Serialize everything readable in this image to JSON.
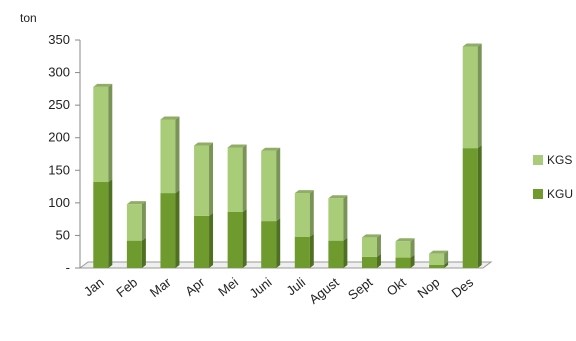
{
  "chart_data": {
    "type": "bar",
    "stacked": true,
    "unit_label": "ton",
    "categories": [
      "Jan",
      "Feb",
      "Mar",
      "Apr",
      "Mei",
      "Juni",
      "Juli",
      "Agust",
      "Sept",
      "Okt",
      "Nop",
      "Des"
    ],
    "series": [
      {
        "name": "KGU",
        "color": "#6e9a2e",
        "values": [
          132,
          42,
          115,
          80,
          86,
          72,
          48,
          42,
          17,
          16,
          5,
          184
        ]
      },
      {
        "name": "KGS",
        "color": "#a9cc79",
        "values": [
          146,
          56,
          113,
          108,
          99,
          108,
          67,
          65,
          30,
          25,
          17,
          156
        ]
      }
    ],
    "ylim": [
      0,
      350
    ],
    "yticks": [
      {
        "value": 0,
        "label": "-"
      },
      {
        "value": 50,
        "label": "50"
      },
      {
        "value": 100,
        "label": "100"
      },
      {
        "value": 150,
        "label": "150"
      },
      {
        "value": 200,
        "label": "200"
      },
      {
        "value": 250,
        "label": "250"
      },
      {
        "value": 300,
        "label": "300"
      },
      {
        "value": 350,
        "label": "350"
      }
    ],
    "legend_position": "right",
    "grid": false,
    "style": "3d-columns"
  }
}
